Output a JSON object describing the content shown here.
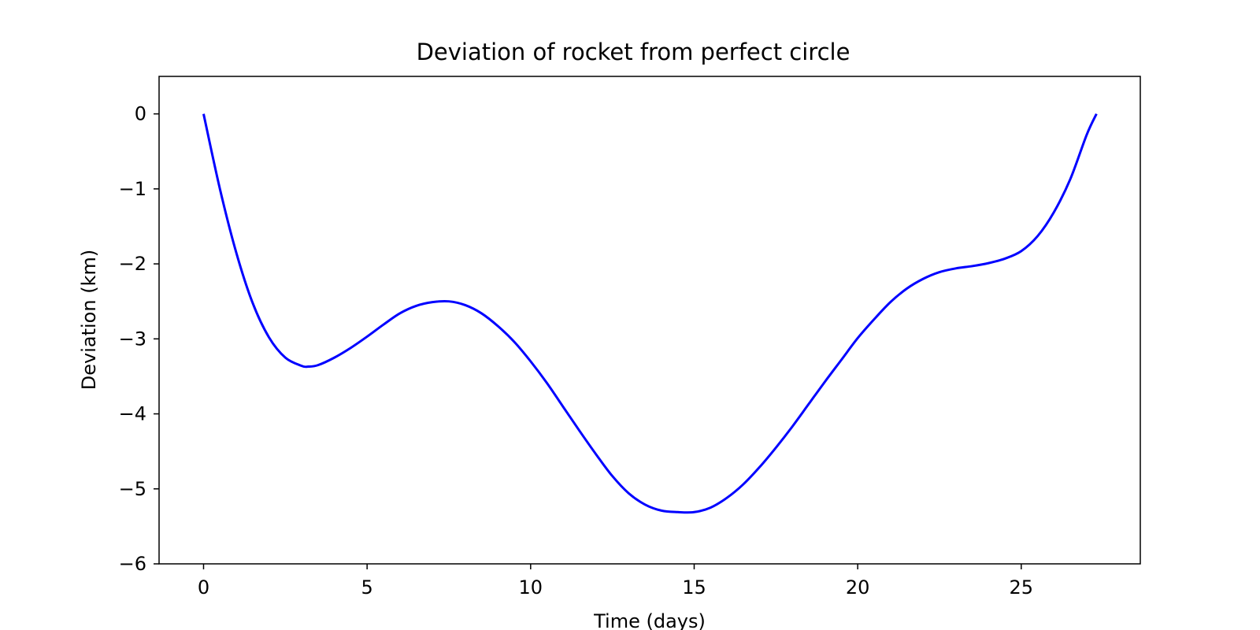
{
  "chart_data": {
    "type": "line",
    "title": "Deviation of rocket from perfect circle",
    "xlabel": "Time (days)",
    "ylabel": "Deviation (km)",
    "xlim": [
      -1.36,
      28.64
    ],
    "ylim": [
      -6,
      0.5
    ],
    "xticks": [
      0,
      5,
      10,
      15,
      20,
      25
    ],
    "xtick_labels": [
      "0",
      "5",
      "10",
      "15",
      "20",
      "25"
    ],
    "yticks": [
      0,
      -1,
      -2,
      -3,
      -4,
      -5,
      -6
    ],
    "ytick_labels": [
      "0",
      "−1",
      "−2",
      "−3",
      "−4",
      "−5",
      "−6"
    ],
    "grid": false,
    "series": [
      {
        "color": "#0000ff",
        "x": [
          0,
          0.5,
          1,
          1.5,
          2,
          2.5,
          3,
          3.2,
          3.5,
          4,
          4.5,
          5,
          5.5,
          6,
          6.5,
          7,
          7.5,
          8,
          8.5,
          9,
          9.5,
          10,
          10.5,
          11,
          11.5,
          12,
          12.5,
          13,
          13.5,
          14,
          14.5,
          15,
          15.5,
          16,
          16.5,
          17,
          17.5,
          18,
          18.5,
          19,
          19.5,
          20,
          20.5,
          21,
          21.5,
          22,
          22.5,
          23,
          23.5,
          24,
          24.5,
          25,
          25.5,
          26,
          26.5,
          27,
          27.3
        ],
        "y": [
          0,
          -1.0,
          -1.85,
          -2.52,
          -2.98,
          -3.25,
          -3.36,
          -3.37,
          -3.35,
          -3.25,
          -3.12,
          -2.97,
          -2.81,
          -2.66,
          -2.56,
          -2.51,
          -2.5,
          -2.55,
          -2.66,
          -2.83,
          -3.04,
          -3.3,
          -3.59,
          -3.91,
          -4.23,
          -4.54,
          -4.83,
          -5.06,
          -5.21,
          -5.29,
          -5.31,
          -5.31,
          -5.25,
          -5.12,
          -4.94,
          -4.71,
          -4.45,
          -4.17,
          -3.87,
          -3.57,
          -3.28,
          -2.99,
          -2.74,
          -2.51,
          -2.33,
          -2.2,
          -2.11,
          -2.06,
          -2.03,
          -1.99,
          -1.93,
          -1.83,
          -1.63,
          -1.31,
          -0.87,
          -0.28,
          0
        ]
      }
    ]
  }
}
